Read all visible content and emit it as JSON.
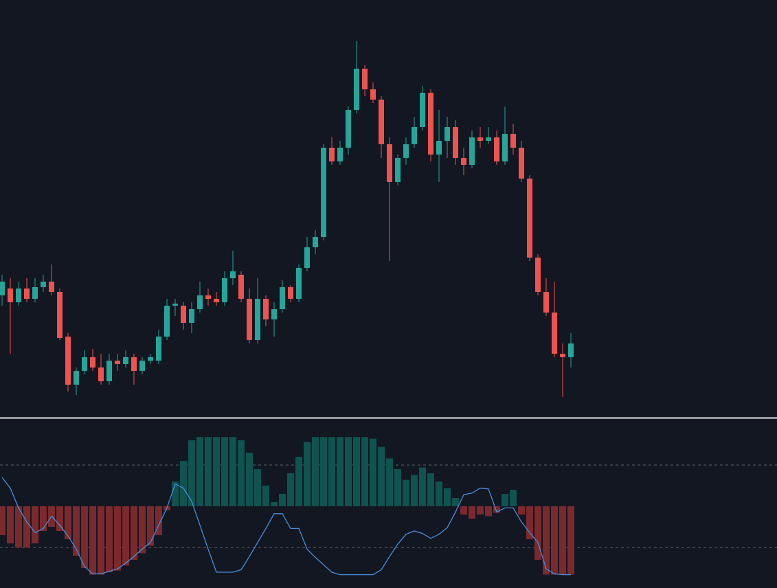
{
  "chart_data": [
    {
      "type": "candlestick",
      "up_color": "#26a69a",
      "down_color": "#ef5350",
      "ylim": [
        0,
        600
      ],
      "open": [
        170,
        180,
        160,
        180,
        165,
        182,
        190,
        175,
        110,
        40,
        60,
        80,
        65,
        45,
        75,
        70,
        80,
        60,
        75,
        75,
        110,
        155,
        155,
        130,
        150,
        170,
        165,
        160,
        195,
        200,
        165,
        105,
        165,
        135,
        150,
        182,
        165,
        210,
        240,
        255,
        385,
        365,
        385,
        440,
        500,
        470,
        455,
        390,
        335,
        370,
        390,
        415,
        465,
        375,
        395,
        415,
        370,
        360,
        400,
        395,
        400,
        365,
        405,
        385,
        340,
        225,
        175,
        145,
        85,
        80
      ],
      "high": [
        200,
        195,
        190,
        195,
        195,
        200,
        215,
        180,
        115,
        65,
        90,
        92,
        85,
        85,
        85,
        90,
        85,
        80,
        85,
        120,
        165,
        165,
        160,
        160,
        190,
        180,
        175,
        205,
        235,
        205,
        180,
        195,
        170,
        160,
        192,
        185,
        215,
        255,
        265,
        390,
        400,
        395,
        445,
        540,
        505,
        480,
        460,
        400,
        375,
        400,
        430,
        475,
        470,
        440,
        430,
        425,
        385,
        410,
        415,
        415,
        410,
        445,
        420,
        395,
        345,
        230,
        195,
        190,
        100,
        115
      ],
      "low": [
        155,
        85,
        155,
        160,
        160,
        175,
        170,
        105,
        30,
        25,
        55,
        60,
        40,
        40,
        60,
        65,
        40,
        55,
        70,
        70,
        105,
        140,
        120,
        115,
        145,
        155,
        155,
        155,
        185,
        160,
        100,
        100,
        125,
        110,
        145,
        160,
        160,
        205,
        230,
        250,
        360,
        360,
        375,
        435,
        460,
        450,
        370,
        220,
        330,
        360,
        385,
        410,
        365,
        335,
        370,
        360,
        345,
        355,
        385,
        390,
        360,
        360,
        375,
        335,
        220,
        170,
        140,
        80,
        22,
        65
      ],
      "close": [
        190,
        160,
        180,
        165,
        182,
        190,
        175,
        108,
        40,
        60,
        80,
        65,
        45,
        75,
        70,
        80,
        60,
        75,
        80,
        110,
        155,
        158,
        130,
        150,
        170,
        165,
        160,
        195,
        205,
        165,
        105,
        165,
        135,
        150,
        182,
        165,
        210,
        240,
        255,
        385,
        365,
        385,
        440,
        500,
        470,
        455,
        390,
        335,
        370,
        390,
        415,
        465,
        375,
        395,
        415,
        370,
        360,
        400,
        395,
        400,
        365,
        405,
        385,
        340,
        225,
        175,
        145,
        85,
        80,
        100
      ]
    },
    {
      "type": "oscillator",
      "ylim": [
        -100,
        100
      ],
      "hlines": [
        50,
        -50
      ],
      "histogram": [
        -35,
        -45,
        -50,
        -50,
        -45,
        -30,
        -25,
        -30,
        -40,
        -60,
        -75,
        -83,
        -83,
        -80,
        -78,
        -72,
        -65,
        -57,
        -48,
        -35,
        -5,
        30,
        55,
        80,
        84,
        84,
        84,
        84,
        84,
        80,
        65,
        45,
        25,
        5,
        15,
        40,
        60,
        78,
        84,
        84,
        84,
        84,
        84,
        84,
        84,
        82,
        72,
        58,
        45,
        32,
        38,
        47,
        40,
        30,
        22,
        10,
        -10,
        -15,
        -10,
        -12,
        -8,
        15,
        20,
        -10,
        -40,
        -65,
        -83,
        -83,
        -83,
        -83
      ],
      "line": [
        35,
        22,
        -2,
        -19,
        -32,
        -27,
        -12,
        -23,
        -36,
        -52,
        -73,
        -82,
        -82,
        -79,
        -76,
        -69,
        -61,
        -52,
        -44,
        -23,
        -2,
        27,
        22,
        6,
        -23,
        -52,
        -80,
        -80,
        -80,
        -77,
        -61,
        -44,
        -27,
        -9,
        -9,
        -27,
        -27,
        -52,
        -62,
        -71,
        -80,
        -83,
        -83,
        -83,
        -83,
        -83,
        -77,
        -61,
        -46,
        -34,
        -30,
        -33,
        -39,
        -34,
        -26,
        -7,
        14,
        16,
        22,
        21,
        -7,
        -2,
        -2,
        -19,
        -32,
        -44,
        -76,
        -82,
        -83,
        -83
      ],
      "pos_color": "#0f5450",
      "neg_color": "#7a2a2d",
      "line_color": "#4a8fe0"
    }
  ]
}
